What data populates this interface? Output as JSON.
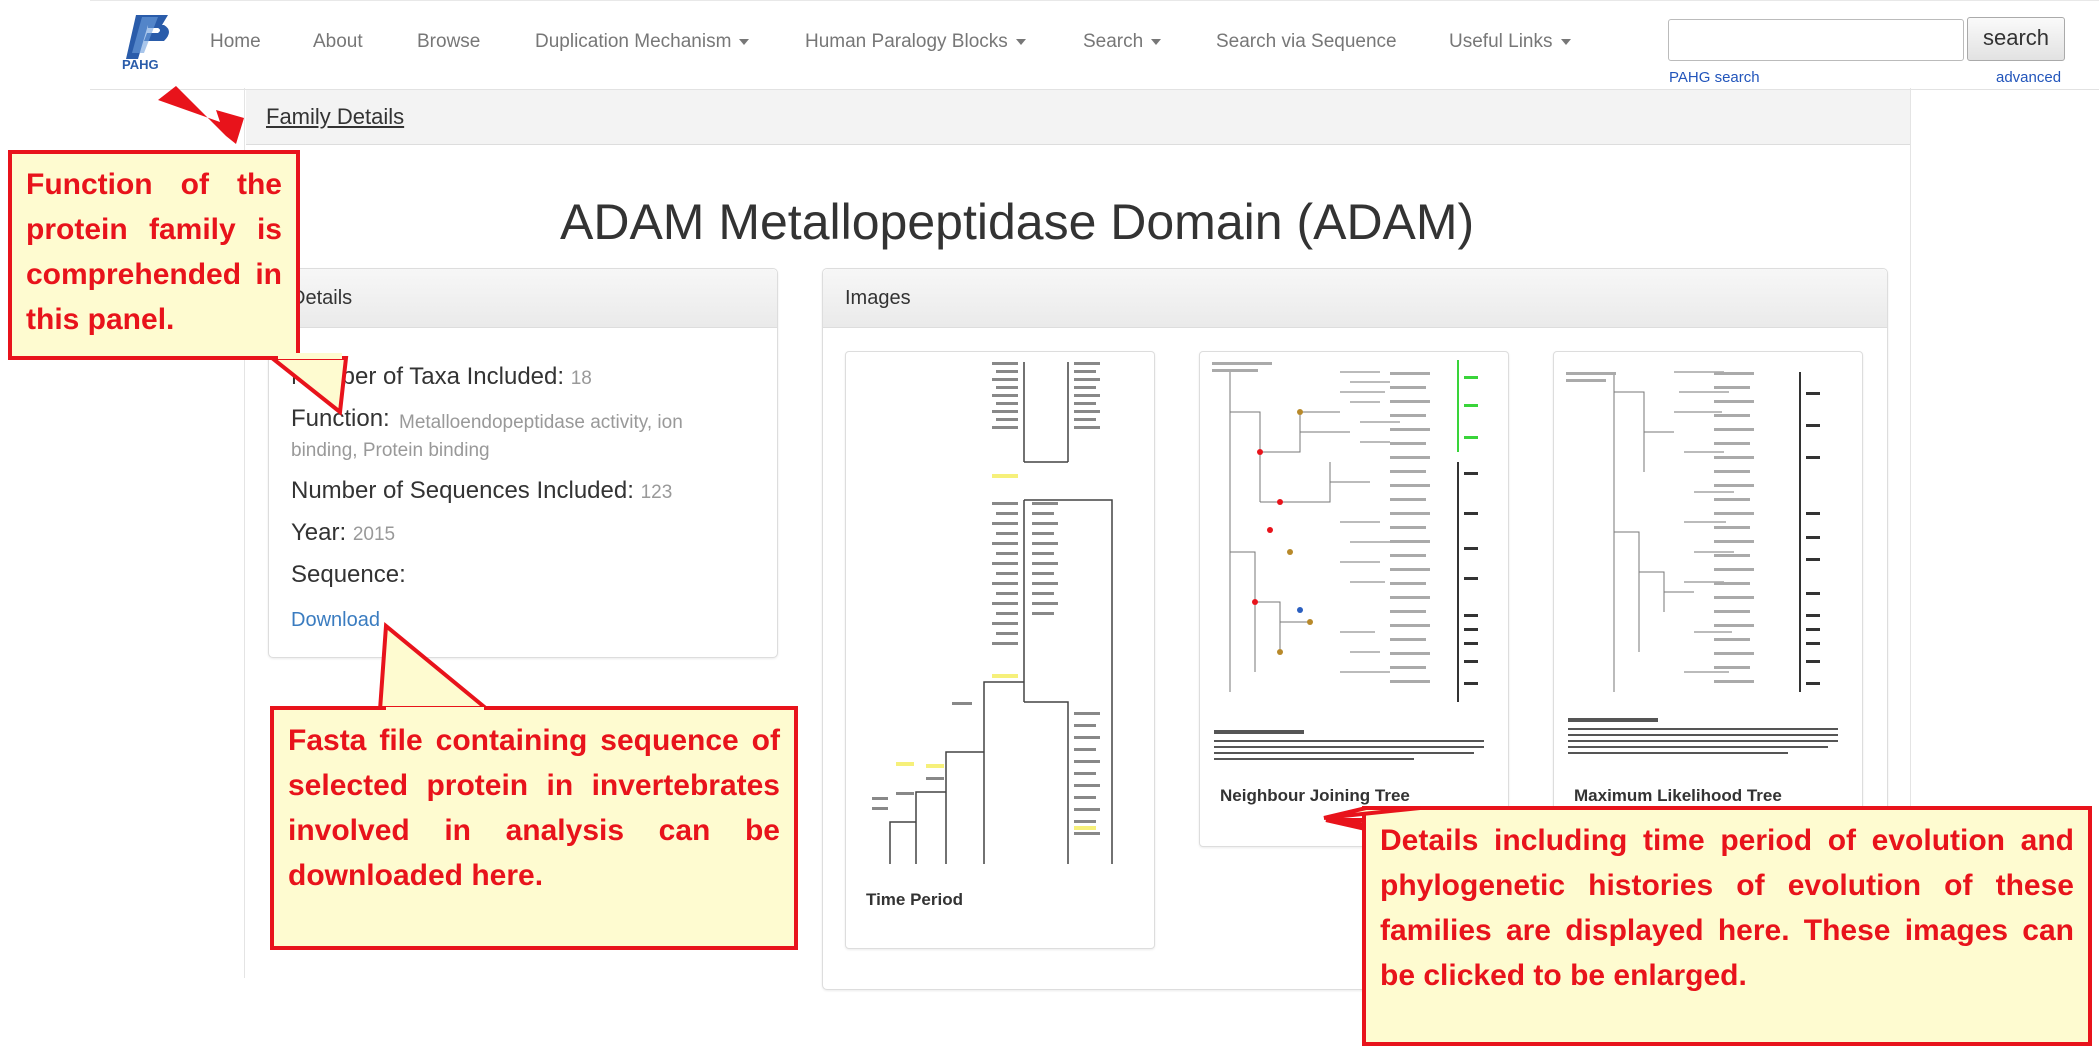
{
  "brand": {
    "logo_text": "PAHG"
  },
  "nav": {
    "items": [
      {
        "label": "Home",
        "dropdown": false
      },
      {
        "label": "About",
        "dropdown": false
      },
      {
        "label": "Browse",
        "dropdown": false
      },
      {
        "label": "Duplication Mechanism",
        "dropdown": true
      },
      {
        "label": "Human Paralogy Blocks",
        "dropdown": true
      },
      {
        "label": "Search",
        "dropdown": true
      },
      {
        "label": "Search via Sequence",
        "dropdown": false
      },
      {
        "label": "Useful Links",
        "dropdown": true
      }
    ],
    "search_value": "",
    "search_button": "search",
    "pahg_search": "PAHG search",
    "advanced": "advanced"
  },
  "breadcrumb": "Family Details",
  "page_title": "ADAM Metallopeptidase Domain (ADAM)",
  "details_panel": {
    "heading": "Details",
    "taxa_label": "Number of Taxa Included:",
    "taxa_value": "18",
    "function_label": "Function:",
    "function_value": "Metalloendopeptidase activity, ion binding, Protein binding",
    "sequences_label": "Number of Sequences Included:",
    "sequences_value": "123",
    "year_label": "Year:",
    "year_value": "2015",
    "sequence_label": "Sequence:",
    "download": "Download"
  },
  "images_panel": {
    "heading": "Images",
    "thumbs": [
      {
        "caption": "Time Period"
      },
      {
        "caption": "Neighbour Joining Tree"
      },
      {
        "caption": "Maximum Likelihood Tree"
      }
    ]
  },
  "callouts": {
    "function": "Function of the protein family is comprehended in this panel.",
    "fasta": "Fasta file containing sequence of selected protein in invertebrates involved in analysis can be downloaded here.",
    "images": "Details including time period of evolution and phylogenetic histories of evolution of these families are displayed here. These images can be clicked to be enlarged."
  },
  "colors": {
    "callout_border": "#e8131b",
    "callout_fill": "#fefbd0",
    "link": "#3a7cc0"
  }
}
